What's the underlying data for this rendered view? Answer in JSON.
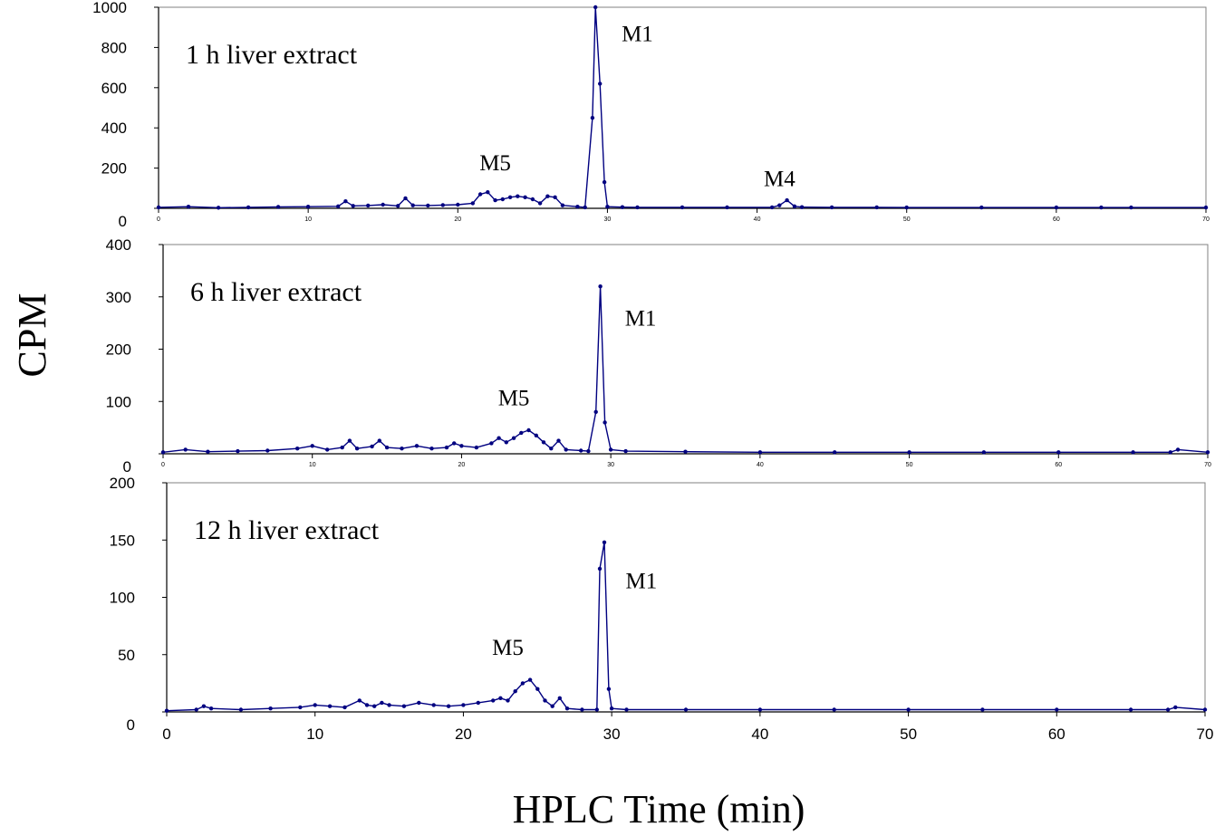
{
  "chart_data": {
    "xlabel": "HPLC Time (min)",
    "ylabel": "CPM",
    "series_color": "#000080",
    "panels": [
      {
        "type": "line",
        "title": "1 h liver extract",
        "xlim": [
          0,
          70
        ],
        "ylim": [
          0,
          1000
        ],
        "y_ticks": [
          0,
          200,
          400,
          600,
          800,
          1000
        ],
        "x_ticks": [
          0,
          10,
          20,
          30,
          40,
          50,
          60,
          70
        ],
        "annotations": [
          {
            "text": "M1",
            "x": 32,
            "y": 830
          },
          {
            "text": "M5",
            "x": 22.5,
            "y": 190
          },
          {
            "text": "M4",
            "x": 41.5,
            "y": 110
          }
        ],
        "x": [
          0,
          2,
          4,
          6,
          8,
          10,
          12,
          12.5,
          13,
          14,
          15,
          16,
          16.5,
          17,
          18,
          19,
          20,
          21,
          21.5,
          22,
          22.5,
          23,
          23.5,
          24,
          24.5,
          25,
          25.5,
          26,
          26.5,
          27,
          28,
          28.5,
          29,
          29.2,
          29.5,
          29.8,
          30,
          31,
          32,
          35,
          38,
          41,
          41.5,
          42,
          42.5,
          43,
          45,
          48,
          50,
          55,
          60,
          63,
          65,
          70
        ],
        "y": [
          5,
          8,
          3,
          5,
          7,
          8,
          10,
          35,
          12,
          14,
          18,
          12,
          50,
          15,
          14,
          16,
          18,
          25,
          70,
          80,
          40,
          45,
          55,
          60,
          55,
          45,
          25,
          60,
          55,
          15,
          8,
          5,
          450,
          1000,
          620,
          130,
          8,
          6,
          5,
          5,
          5,
          5,
          15,
          40,
          10,
          6,
          5,
          5,
          4,
          4,
          4,
          4,
          4,
          4
        ]
      },
      {
        "type": "line",
        "title": "6 h liver extract",
        "xlim": [
          0,
          70
        ],
        "ylim": [
          0,
          400
        ],
        "y_ticks": [
          0,
          100,
          200,
          300,
          400
        ],
        "x_ticks": [
          0,
          10,
          20,
          30,
          40,
          50,
          60,
          70
        ],
        "annotations": [
          {
            "text": "M1",
            "x": 32,
            "y": 245
          },
          {
            "text": "M5",
            "x": 23.5,
            "y": 93
          }
        ],
        "x": [
          0,
          1.5,
          3,
          5,
          7,
          9,
          10,
          11,
          12,
          12.5,
          13,
          14,
          14.5,
          15,
          16,
          17,
          18,
          19,
          19.5,
          20,
          21,
          22,
          22.5,
          23,
          23.5,
          24,
          24.5,
          25,
          25.5,
          26,
          26.5,
          27,
          28,
          28.5,
          29,
          29.3,
          29.6,
          30,
          31,
          35,
          40,
          45,
          50,
          55,
          60,
          65,
          67.5,
          68,
          70
        ],
        "y": [
          3,
          8,
          4,
          5,
          6,
          10,
          15,
          8,
          12,
          25,
          10,
          14,
          25,
          12,
          10,
          15,
          10,
          12,
          20,
          15,
          12,
          20,
          30,
          22,
          30,
          40,
          45,
          35,
          22,
          10,
          25,
          8,
          6,
          5,
          80,
          320,
          60,
          8,
          5,
          4,
          3,
          3,
          3,
          3,
          3,
          3,
          3,
          8,
          3
        ]
      },
      {
        "type": "line",
        "title": "12 h liver extract",
        "xlim": [
          0,
          70
        ],
        "ylim": [
          0,
          200
        ],
        "y_ticks": [
          0,
          50,
          100,
          150,
          200
        ],
        "x_ticks": [
          0,
          10,
          20,
          30,
          40,
          50,
          60,
          70
        ],
        "annotations": [
          {
            "text": "M1",
            "x": 32,
            "y": 108
          },
          {
            "text": "M5",
            "x": 23,
            "y": 50
          }
        ],
        "x": [
          0,
          2,
          2.5,
          3,
          5,
          7,
          9,
          10,
          11,
          12,
          13,
          13.5,
          14,
          14.5,
          15,
          16,
          17,
          18,
          19,
          20,
          21,
          22,
          22.5,
          23,
          23.5,
          24,
          24.5,
          25,
          25.5,
          26,
          26.5,
          27,
          28,
          29,
          29.2,
          29.5,
          29.8,
          30,
          31,
          35,
          40,
          45,
          50,
          55,
          60,
          65,
          67.5,
          68,
          70
        ],
        "y": [
          1,
          2,
          5,
          3,
          2,
          3,
          4,
          6,
          5,
          4,
          10,
          6,
          5,
          8,
          6,
          5,
          8,
          6,
          5,
          6,
          8,
          10,
          12,
          10,
          18,
          25,
          28,
          20,
          10,
          5,
          12,
          3,
          2,
          2,
          125,
          148,
          20,
          3,
          2,
          2,
          2,
          2,
          2,
          2,
          2,
          2,
          2,
          4,
          2
        ]
      }
    ]
  }
}
